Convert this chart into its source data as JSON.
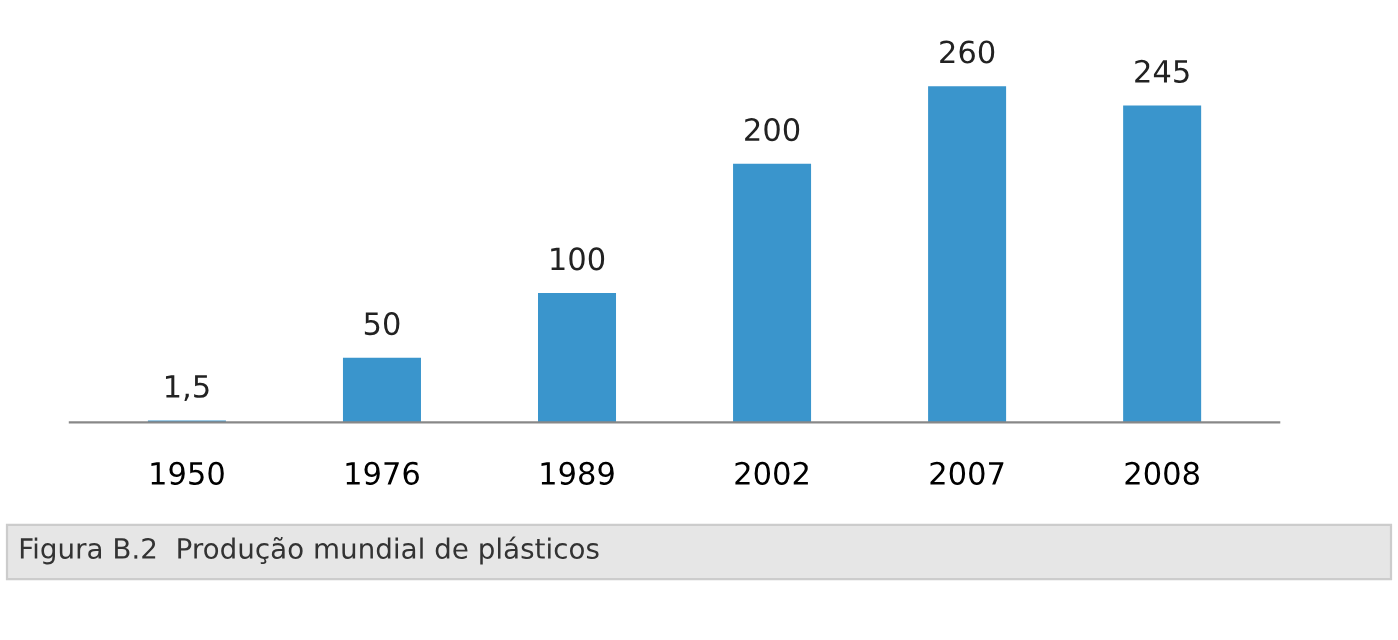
{
  "chart_data": {
    "type": "bar",
    "categories": [
      "1950",
      "1976",
      "1989",
      "2002",
      "2007",
      "2008"
    ],
    "values": [
      1.5,
      50,
      100,
      200,
      260,
      245
    ],
    "value_labels": [
      "1,5",
      "50",
      "100",
      "200",
      "260",
      "245"
    ],
    "color": "#3a95cc",
    "grid": false,
    "legend": false,
    "annotations": [
      "Figura B.2  Produção mundial de plásticos"
    ]
  }
}
